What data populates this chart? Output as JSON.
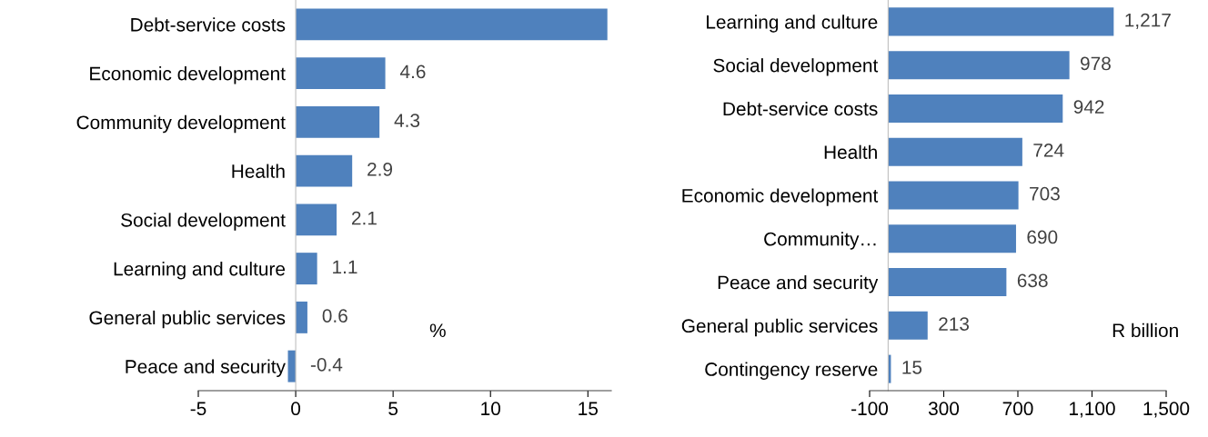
{
  "chart_data": [
    {
      "type": "bar",
      "orientation": "horizontal",
      "categories": [
        "Debt-service costs",
        "Economic development",
        "Community development",
        "Health",
        "Social development",
        "Learning and culture",
        "General public services",
        "Peace and security"
      ],
      "values": [
        16.0,
        4.6,
        4.3,
        2.9,
        2.1,
        1.1,
        0.6,
        -0.4
      ],
      "value_labels": [
        null,
        "4.6",
        "4.3",
        "2.9",
        "2.1",
        "1.1",
        "0.6",
        "-0.4"
      ],
      "color": "#4f81bd",
      "xlim": [
        -5,
        16.2
      ],
      "xticks": [
        -5,
        0,
        5,
        10,
        15
      ],
      "grid": false,
      "annotations": [
        "%"
      ]
    },
    {
      "type": "bar",
      "orientation": "horizontal",
      "categories": [
        "Learning and culture",
        "Social development",
        "Debt-service costs",
        "Health",
        "Economic development",
        "Community…",
        "Peace and security",
        "General public services",
        "Contingency reserve"
      ],
      "values": [
        1217,
        978,
        942,
        724,
        703,
        690,
        638,
        213,
        15
      ],
      "value_labels": [
        "1,217",
        "978",
        "942",
        "724",
        "703",
        "690",
        "638",
        "213",
        "15"
      ],
      "color": "#4f81bd",
      "xlim": [
        -100,
        1500
      ],
      "xticks": [
        -100,
        300,
        700,
        {
          "value": 1100,
          "label": "1,100"
        },
        {
          "value": 1500,
          "label": "1,500"
        }
      ],
      "grid": false,
      "annotations": [
        "R billion"
      ]
    }
  ]
}
